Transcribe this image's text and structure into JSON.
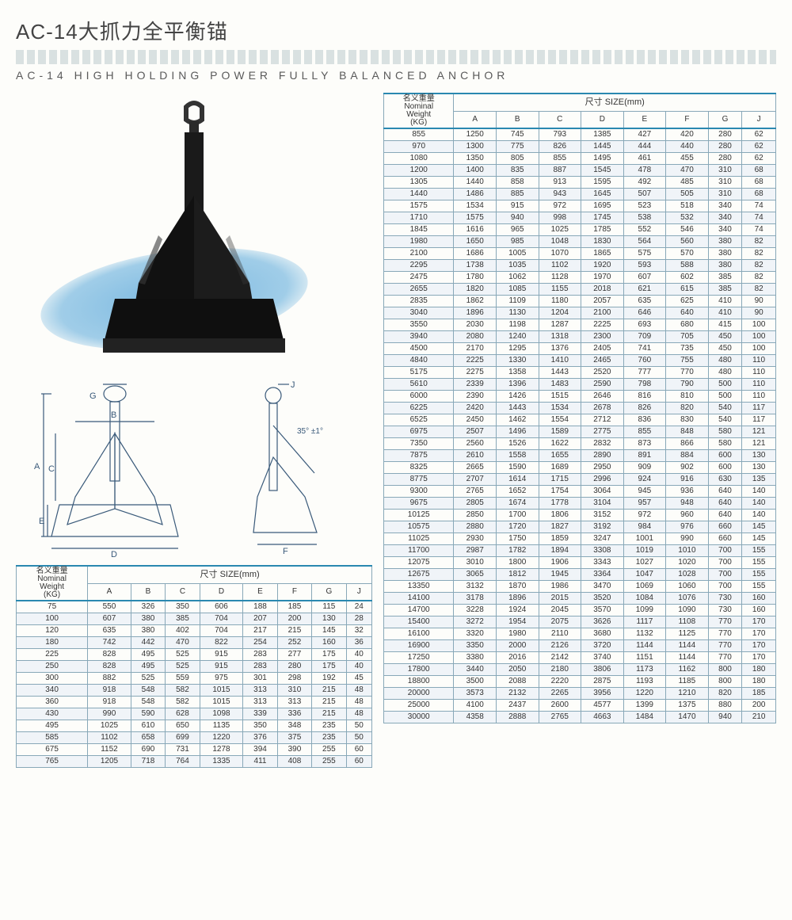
{
  "header": {
    "title_cn": "AC-14大抓力全平衡锚",
    "title_en": "AC-14 HIGH HOLDING POWER FULLY BALANCED ANCHOR"
  },
  "diagram": {
    "labels": [
      "A",
      "B",
      "C",
      "D",
      "E",
      "F",
      "G",
      "J"
    ],
    "angle_label": "35° ±1°"
  },
  "table_header": {
    "weight_cn": "名义重量",
    "weight_en1": "Nominal",
    "weight_en2": "Weight",
    "weight_unit": "(KG)",
    "size_cn": "尺寸",
    "size_label": "SIZE(mm)",
    "cols": [
      "A",
      "B",
      "C",
      "D",
      "E",
      "F",
      "G",
      "J"
    ]
  },
  "table_left": {
    "rows": [
      [
        75,
        550,
        326,
        350,
        606,
        188,
        185,
        115,
        24
      ],
      [
        100,
        607,
        380,
        385,
        704,
        207,
        200,
        130,
        28
      ],
      [
        120,
        635,
        380,
        402,
        704,
        217,
        215,
        145,
        32
      ],
      [
        180,
        742,
        442,
        470,
        822,
        254,
        252,
        160,
        36
      ],
      [
        225,
        828,
        495,
        525,
        915,
        283,
        277,
        175,
        40
      ],
      [
        250,
        828,
        495,
        525,
        915,
        283,
        280,
        175,
        40
      ],
      [
        300,
        882,
        525,
        559,
        975,
        301,
        298,
        192,
        45
      ],
      [
        340,
        918,
        548,
        582,
        1015,
        313,
        310,
        215,
        48
      ],
      [
        360,
        918,
        548,
        582,
        1015,
        313,
        313,
        215,
        48
      ],
      [
        430,
        990,
        590,
        628,
        1098,
        339,
        336,
        215,
        48
      ],
      [
        495,
        1025,
        610,
        650,
        1135,
        350,
        348,
        235,
        50
      ],
      [
        585,
        1102,
        658,
        699,
        1220,
        376,
        375,
        235,
        50
      ],
      [
        675,
        1152,
        690,
        731,
        1278,
        394,
        390,
        255,
        60
      ],
      [
        765,
        1205,
        718,
        764,
        1335,
        411,
        408,
        255,
        60
      ]
    ]
  },
  "table_right": {
    "rows": [
      [
        855,
        1250,
        745,
        793,
        1385,
        427,
        420,
        280,
        62
      ],
      [
        970,
        1300,
        775,
        826,
        1445,
        444,
        440,
        280,
        62
      ],
      [
        1080,
        1350,
        805,
        855,
        1495,
        461,
        455,
        280,
        62
      ],
      [
        1200,
        1400,
        835,
        887,
        1545,
        478,
        470,
        310,
        68
      ],
      [
        1305,
        1440,
        858,
        913,
        1595,
        492,
        485,
        310,
        68
      ],
      [
        1440,
        1486,
        885,
        943,
        1645,
        507,
        505,
        310,
        68
      ],
      [
        1575,
        1534,
        915,
        972,
        1695,
        523,
        518,
        340,
        74
      ],
      [
        1710,
        1575,
        940,
        998,
        1745,
        538,
        532,
        340,
        74
      ],
      [
        1845,
        1616,
        965,
        1025,
        1785,
        552,
        546,
        340,
        74
      ],
      [
        1980,
        1650,
        985,
        1048,
        1830,
        564,
        560,
        380,
        82
      ],
      [
        2100,
        1686,
        1005,
        1070,
        1865,
        575,
        570,
        380,
        82
      ],
      [
        2295,
        1738,
        1035,
        1102,
        1920,
        593,
        588,
        380,
        82
      ],
      [
        2475,
        1780,
        1062,
        1128,
        1970,
        607,
        602,
        385,
        82
      ],
      [
        2655,
        1820,
        1085,
        1155,
        2018,
        621,
        615,
        385,
        82
      ],
      [
        2835,
        1862,
        1109,
        1180,
        2057,
        635,
        625,
        410,
        90
      ],
      [
        3040,
        1896,
        1130,
        1204,
        2100,
        646,
        640,
        410,
        90
      ],
      [
        3550,
        2030,
        1198,
        1287,
        2225,
        693,
        680,
        415,
        100
      ],
      [
        3940,
        2080,
        1240,
        1318,
        2300,
        709,
        705,
        450,
        100
      ],
      [
        4500,
        2170,
        1295,
        1376,
        2405,
        741,
        735,
        450,
        100
      ],
      [
        4840,
        2225,
        1330,
        1410,
        2465,
        760,
        755,
        480,
        110
      ],
      [
        5175,
        2275,
        1358,
        1443,
        2520,
        777,
        770,
        480,
        110
      ],
      [
        5610,
        2339,
        1396,
        1483,
        2590,
        798,
        790,
        500,
        110
      ],
      [
        6000,
        2390,
        1426,
        1515,
        2646,
        816,
        810,
        500,
        110
      ],
      [
        6225,
        2420,
        1443,
        1534,
        2678,
        826,
        820,
        540,
        117
      ],
      [
        6525,
        2450,
        1462,
        1554,
        2712,
        836,
        830,
        540,
        117
      ],
      [
        6975,
        2507,
        1496,
        1589,
        2775,
        855,
        848,
        580,
        121
      ],
      [
        7350,
        2560,
        1526,
        1622,
        2832,
        873,
        866,
        580,
        121
      ],
      [
        7875,
        2610,
        1558,
        1655,
        2890,
        891,
        884,
        600,
        130
      ],
      [
        8325,
        2665,
        1590,
        1689,
        2950,
        909,
        902,
        600,
        130
      ],
      [
        8775,
        2707,
        1614,
        1715,
        2996,
        924,
        916,
        630,
        135
      ],
      [
        9300,
        2765,
        1652,
        1754,
        3064,
        945,
        936,
        640,
        140
      ],
      [
        9675,
        2805,
        1674,
        1778,
        3104,
        957,
        948,
        640,
        140
      ],
      [
        10125,
        2850,
        1700,
        1806,
        3152,
        972,
        960,
        640,
        140
      ],
      [
        10575,
        2880,
        1720,
        1827,
        3192,
        984,
        976,
        660,
        145
      ],
      [
        11025,
        2930,
        1750,
        1859,
        3247,
        1001,
        990,
        660,
        145
      ],
      [
        11700,
        2987,
        1782,
        1894,
        3308,
        1019,
        1010,
        700,
        155
      ],
      [
        12075,
        3010,
        1800,
        1906,
        3343,
        1027,
        1020,
        700,
        155
      ],
      [
        12675,
        3065,
        1812,
        1945,
        3364,
        1047,
        1028,
        700,
        155
      ],
      [
        13350,
        3132,
        1870,
        1986,
        3470,
        1069,
        1060,
        700,
        155
      ],
      [
        14100,
        3178,
        1896,
        2015,
        3520,
        1084,
        1076,
        730,
        160
      ],
      [
        14700,
        3228,
        1924,
        2045,
        3570,
        1099,
        1090,
        730,
        160
      ],
      [
        15400,
        3272,
        1954,
        2075,
        3626,
        1117,
        1108,
        770,
        170
      ],
      [
        16100,
        3320,
        1980,
        2110,
        3680,
        1132,
        1125,
        770,
        170
      ],
      [
        16900,
        3350,
        2000,
        2126,
        3720,
        1144,
        1144,
        770,
        170
      ],
      [
        17250,
        3380,
        2016,
        2142,
        3740,
        1151,
        1144,
        770,
        170
      ],
      [
        17800,
        3440,
        2050,
        2180,
        3806,
        1173,
        1162,
        800,
        180
      ],
      [
        18800,
        3500,
        2088,
        2220,
        2875,
        1193,
        1185,
        800,
        180
      ],
      [
        20000,
        3573,
        2132,
        2265,
        3956,
        1220,
        1210,
        820,
        185
      ],
      [
        25000,
        4100,
        2437,
        2600,
        4577,
        1399,
        1375,
        880,
        200
      ],
      [
        30000,
        4358,
        2888,
        2765,
        4663,
        1484,
        1470,
        940,
        210
      ]
    ]
  },
  "colors": {
    "accent": "#2a88b0",
    "border": "#88a8b8",
    "anchor_body": "#1a1a1a",
    "ellipse": "#7ab8e0",
    "diagram_stroke": "#3a5a7a"
  }
}
